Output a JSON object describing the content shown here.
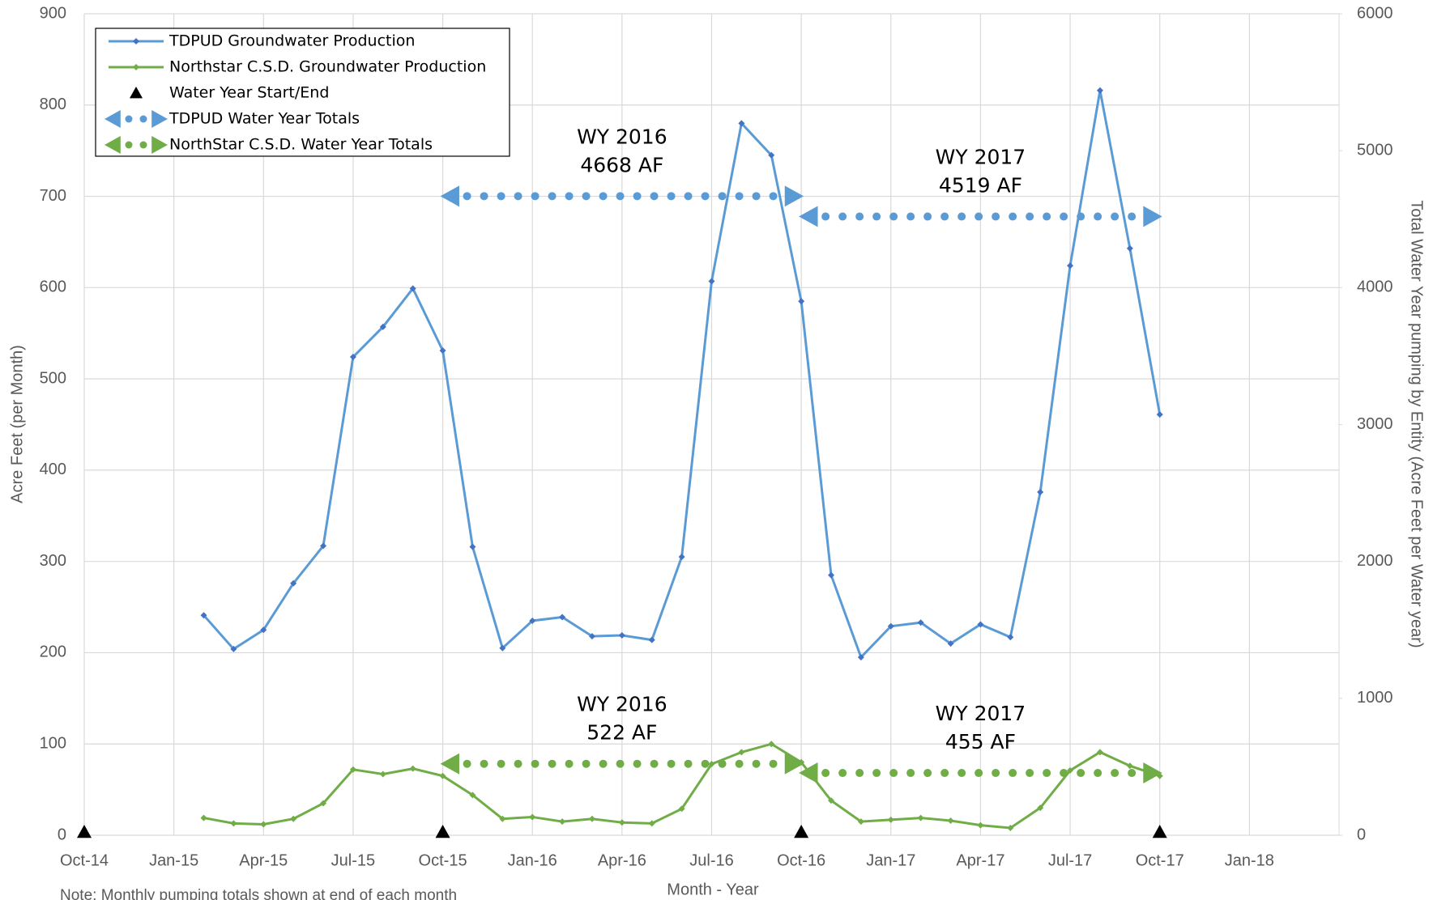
{
  "chart_data": {
    "type": "line",
    "xlabel": "Month - Year",
    "ylabel": "Acre Feet (per Month)",
    "y2label": "Total Water Year pumping by Entity (Acre Feet per Water year)",
    "note": "Note: Monthly pumping totals shown at end of each month",
    "xlim": [
      "Oct-14",
      "Apr-18"
    ],
    "xticks": [
      "Oct-14",
      "Jan-15",
      "Apr-15",
      "Jul-15",
      "Oct-15",
      "Jan-16",
      "Apr-16",
      "Jul-16",
      "Oct-16",
      "Jan-17",
      "Apr-17",
      "Jul-17",
      "Oct-17",
      "Jan-18"
    ],
    "ylim": [
      0,
      900
    ],
    "yticks": [
      0,
      100,
      200,
      300,
      400,
      500,
      600,
      700,
      800,
      900
    ],
    "y2lim": [
      0,
      6000
    ],
    "y2ticks": [
      0,
      1000,
      2000,
      3000,
      4000,
      5000,
      6000
    ],
    "grid": true,
    "legend": "upper left",
    "series": [
      {
        "name": "TDPUD Groundwater Production",
        "type": "line",
        "color": "#5b9bd5",
        "marker_color": "#4472c4",
        "x": [
          "Feb-15",
          "Mar-15",
          "Apr-15",
          "May-15",
          "Jun-15",
          "Jul-15",
          "Aug-15",
          "Sep-15",
          "Oct-15",
          "Nov-15",
          "Dec-15",
          "Jan-16",
          "Feb-16",
          "Mar-16",
          "Apr-16",
          "May-16",
          "Jun-16",
          "Jul-16",
          "Aug-16",
          "Sep-16",
          "Oct-16",
          "Nov-16",
          "Dec-16",
          "Jan-17",
          "Feb-17",
          "Mar-17",
          "Apr-17",
          "May-17",
          "Jun-17",
          "Jul-17",
          "Aug-17",
          "Sep-17",
          "Oct-17"
        ],
        "values": [
          241,
          204,
          225,
          276,
          317,
          524,
          557,
          599,
          531,
          316,
          205,
          235,
          239,
          218,
          219,
          214,
          305,
          607,
          780,
          745,
          585,
          285,
          195,
          229,
          233,
          210,
          231,
          217,
          376,
          624,
          816,
          643,
          461
        ]
      },
      {
        "name": "Northstar C.S.D. Groundwater Production",
        "type": "line",
        "color": "#70ad47",
        "marker_color": "#70ad47",
        "x": [
          "Feb-15",
          "Mar-15",
          "Apr-15",
          "May-15",
          "Jun-15",
          "Jul-15",
          "Aug-15",
          "Sep-15",
          "Oct-15",
          "Nov-15",
          "Dec-15",
          "Jan-16",
          "Feb-16",
          "Mar-16",
          "Apr-16",
          "May-16",
          "Jun-16",
          "Jul-16",
          "Aug-16",
          "Sep-16",
          "Oct-16",
          "Nov-16",
          "Dec-16",
          "Jan-17",
          "Feb-17",
          "Mar-17",
          "Apr-17",
          "May-17",
          "Jun-17",
          "Jul-17",
          "Aug-17",
          "Sep-17",
          "Oct-17"
        ],
        "values": [
          19,
          13,
          12,
          18,
          35,
          72,
          67,
          73,
          65,
          44,
          18,
          20,
          15,
          18,
          14,
          13,
          29,
          78,
          91,
          100,
          80,
          38,
          15,
          17,
          19,
          16,
          11,
          8,
          30,
          71,
          91,
          76,
          65
        ]
      },
      {
        "name": "Water Year Start/End",
        "type": "marker",
        "color": "#000000",
        "x": [
          "Oct-14",
          "Oct-15",
          "Oct-16",
          "Oct-17"
        ],
        "values": [
          0,
          0,
          0,
          0
        ]
      },
      {
        "name": "TDPUD Water Year Totals",
        "type": "range",
        "axis": "y2",
        "color": "#5b9bd5",
        "x": [
          [
            "Oct-15",
            "Oct-16"
          ],
          [
            "Oct-16",
            "Oct-17"
          ]
        ],
        "labels": [
          "WY 2016",
          "WY 2017"
        ],
        "values": [
          4668,
          4519
        ],
        "value_labels": [
          "4668 AF",
          "4519 AF"
        ]
      },
      {
        "name": "NorthStar C.S.D. Water Year Totals",
        "type": "range",
        "axis": "y2",
        "color": "#70ad47",
        "x": [
          [
            "Oct-15",
            "Oct-16"
          ],
          [
            "Oct-16",
            "Oct-17"
          ]
        ],
        "labels": [
          "WY 2016",
          "WY 2017"
        ],
        "values": [
          522,
          455
        ],
        "value_labels": [
          "522 AF",
          "455 AF"
        ]
      }
    ]
  }
}
